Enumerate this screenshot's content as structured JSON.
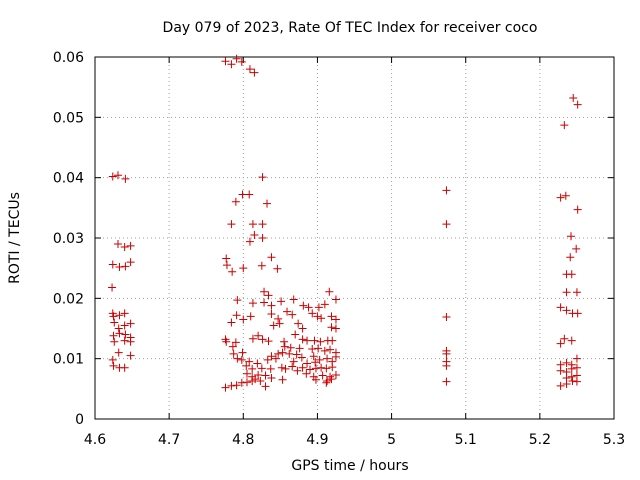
{
  "chart_data": {
    "type": "scatter",
    "title": "Day 079 of 2023, Rate Of TEC Index for receiver coco",
    "xlabel": "GPS time / hours",
    "ylabel": "ROTI / TECUs",
    "xlim": [
      4.6,
      5.3
    ],
    "ylim": [
      0,
      0.06
    ],
    "x_ticks": [
      "4.6",
      "4.7",
      "4.8",
      "4.9",
      "5",
      "5.1",
      "5.2",
      "5.3"
    ],
    "y_ticks": [
      "0",
      "0.01",
      "0.02",
      "0.03",
      "0.04",
      "0.05",
      "0.06"
    ],
    "grid": true,
    "marker": "+",
    "series_color": "#cc0000",
    "series": [
      {
        "points": [
          [
            4.624,
            0.0402
          ],
          [
            4.631,
            0.0404
          ],
          [
            4.641,
            0.0398
          ],
          [
            4.631,
            0.029
          ],
          [
            4.64,
            0.0285
          ],
          [
            4.648,
            0.0287
          ],
          [
            4.624,
            0.0256
          ],
          [
            4.633,
            0.0252
          ],
          [
            4.641,
            0.0253
          ],
          [
            4.648,
            0.026
          ],
          [
            4.623,
            0.0218
          ],
          [
            4.624,
            0.0175
          ],
          [
            4.625,
            0.017
          ],
          [
            4.633,
            0.0172
          ],
          [
            4.64,
            0.0175
          ],
          [
            4.626,
            0.016
          ],
          [
            4.632,
            0.015
          ],
          [
            4.64,
            0.0155
          ],
          [
            4.648,
            0.0158
          ],
          [
            4.625,
            0.0138
          ],
          [
            4.633,
            0.0142
          ],
          [
            4.641,
            0.014
          ],
          [
            4.648,
            0.0135
          ],
          [
            4.626,
            0.0128
          ],
          [
            4.64,
            0.013
          ],
          [
            4.648,
            0.0128
          ],
          [
            4.632,
            0.011
          ],
          [
            4.648,
            0.0105
          ],
          [
            4.624,
            0.0098
          ],
          [
            4.625,
            0.0088
          ],
          [
            4.633,
            0.0085
          ],
          [
            4.64,
            0.0085
          ],
          [
            4.776,
            0.0593
          ],
          [
            4.784,
            0.0588
          ],
          [
            4.791,
            0.0597
          ],
          [
            4.798,
            0.0592
          ],
          [
            4.809,
            0.058
          ],
          [
            4.815,
            0.0574
          ],
          [
            4.826,
            0.0401
          ],
          [
            4.799,
            0.0372
          ],
          [
            4.808,
            0.0372
          ],
          [
            4.79,
            0.036
          ],
          [
            4.832,
            0.0357
          ],
          [
            4.784,
            0.0323
          ],
          [
            4.813,
            0.0323
          ],
          [
            4.826,
            0.0323
          ],
          [
            4.815,
            0.0305
          ],
          [
            4.809,
            0.0294
          ],
          [
            4.826,
            0.03
          ],
          [
            4.838,
            0.0268
          ],
          [
            4.777,
            0.0266
          ],
          [
            4.778,
            0.0255
          ],
          [
            4.785,
            0.0244
          ],
          [
            4.8,
            0.025
          ],
          [
            4.825,
            0.0254
          ],
          [
            4.846,
            0.0249
          ],
          [
            4.828,
            0.0211
          ],
          [
            4.834,
            0.0205
          ],
          [
            4.792,
            0.0197
          ],
          [
            4.813,
            0.0192
          ],
          [
            4.828,
            0.0193
          ],
          [
            4.838,
            0.0188
          ],
          [
            4.851,
            0.0195
          ],
          [
            4.868,
            0.0198
          ],
          [
            4.881,
            0.0188
          ],
          [
            4.888,
            0.0185
          ],
          [
            4.902,
            0.0185
          ],
          [
            4.91,
            0.019
          ],
          [
            4.916,
            0.0211
          ],
          [
            4.925,
            0.0198
          ],
          [
            4.791,
            0.0172
          ],
          [
            4.8,
            0.0165
          ],
          [
            4.81,
            0.017
          ],
          [
            4.838,
            0.0174
          ],
          [
            4.847,
            0.0166
          ],
          [
            4.859,
            0.0178
          ],
          [
            4.866,
            0.0173
          ],
          [
            4.893,
            0.0175
          ],
          [
            4.9,
            0.017
          ],
          [
            4.905,
            0.0167
          ],
          [
            4.919,
            0.017
          ],
          [
            4.925,
            0.0165
          ],
          [
            4.784,
            0.016
          ],
          [
            4.841,
            0.0155
          ],
          [
            4.849,
            0.0158
          ],
          [
            4.874,
            0.0158
          ],
          [
            4.88,
            0.015
          ],
          [
            4.919,
            0.0152
          ],
          [
            4.925,
            0.015
          ],
          [
            4.776,
            0.0132
          ],
          [
            4.777,
            0.0128
          ],
          [
            4.79,
            0.0127
          ],
          [
            4.813,
            0.0133
          ],
          [
            4.82,
            0.0138
          ],
          [
            4.826,
            0.0132
          ],
          [
            4.834,
            0.0129
          ],
          [
            4.855,
            0.0128
          ],
          [
            4.87,
            0.014
          ],
          [
            4.88,
            0.0132
          ],
          [
            4.886,
            0.013
          ],
          [
            4.896,
            0.013
          ],
          [
            4.904,
            0.0128
          ],
          [
            4.914,
            0.013
          ],
          [
            4.92,
            0.013
          ],
          [
            4.786,
            0.012
          ],
          [
            4.856,
            0.012
          ],
          [
            4.864,
            0.0118
          ],
          [
            4.876,
            0.0117
          ],
          [
            4.893,
            0.0116
          ],
          [
            4.901,
            0.0117
          ],
          [
            4.91,
            0.0113
          ],
          [
            4.917,
            0.0115
          ],
          [
            4.925,
            0.011
          ],
          [
            4.787,
            0.0108
          ],
          [
            4.799,
            0.011
          ],
          [
            4.838,
            0.0104
          ],
          [
            4.847,
            0.0108
          ],
          [
            4.853,
            0.011
          ],
          [
            4.862,
            0.0108
          ],
          [
            4.872,
            0.0107
          ],
          [
            4.879,
            0.0102
          ],
          [
            4.895,
            0.0104
          ],
          [
            4.903,
            0.0098
          ],
          [
            4.913,
            0.01
          ],
          [
            4.925,
            0.0103
          ],
          [
            4.792,
            0.01
          ],
          [
            4.798,
            0.0098
          ],
          [
            4.808,
            0.0095
          ],
          [
            4.819,
            0.0092
          ],
          [
            4.833,
            0.0098
          ],
          [
            4.844,
            0.01
          ],
          [
            4.868,
            0.0095
          ],
          [
            4.886,
            0.0092
          ],
          [
            4.897,
            0.0094
          ],
          [
            4.92,
            0.0095
          ],
          [
            4.804,
            0.0088
          ],
          [
            4.812,
            0.0083
          ],
          [
            4.825,
            0.0084
          ],
          [
            4.837,
            0.0083
          ],
          [
            4.852,
            0.0085
          ],
          [
            4.857,
            0.0083
          ],
          [
            4.866,
            0.0087
          ],
          [
            4.88,
            0.0085
          ],
          [
            4.89,
            0.0082
          ],
          [
            4.898,
            0.0084
          ],
          [
            4.905,
            0.0085
          ],
          [
            4.912,
            0.0084
          ],
          [
            4.92,
            0.0086
          ],
          [
            4.805,
            0.0075
          ],
          [
            4.812,
            0.007
          ],
          [
            4.82,
            0.0073
          ],
          [
            4.83,
            0.0072
          ],
          [
            4.873,
            0.008
          ],
          [
            4.885,
            0.0075
          ],
          [
            4.895,
            0.007
          ],
          [
            4.907,
            0.0072
          ],
          [
            4.917,
            0.007
          ],
          [
            4.925,
            0.0073
          ],
          [
            4.816,
            0.0066
          ],
          [
            4.823,
            0.0063
          ],
          [
            4.838,
            0.0068
          ],
          [
            4.853,
            0.0065
          ],
          [
            4.898,
            0.0065
          ],
          [
            4.913,
            0.0063
          ],
          [
            4.919,
            0.0066
          ],
          [
            4.776,
            0.0052
          ],
          [
            4.784,
            0.0055
          ],
          [
            4.791,
            0.0056
          ],
          [
            4.798,
            0.006
          ],
          [
            4.805,
            0.0061
          ],
          [
            4.812,
            0.0063
          ],
          [
            4.83,
            0.0054
          ],
          [
            4.912,
            0.006
          ],
          [
            5.074,
            0.0379
          ],
          [
            5.074,
            0.0323
          ],
          [
            5.074,
            0.0169
          ],
          [
            5.074,
            0.0113
          ],
          [
            5.074,
            0.0108
          ],
          [
            5.074,
            0.0095
          ],
          [
            5.074,
            0.0088
          ],
          [
            5.074,
            0.0062
          ],
          [
            5.245,
            0.0532
          ],
          [
            5.251,
            0.0521
          ],
          [
            5.233,
            0.0487
          ],
          [
            5.228,
            0.0367
          ],
          [
            5.235,
            0.037
          ],
          [
            5.251,
            0.0347
          ],
          [
            5.242,
            0.0303
          ],
          [
            5.249,
            0.0282
          ],
          [
            5.241,
            0.0268
          ],
          [
            5.236,
            0.024
          ],
          [
            5.243,
            0.024
          ],
          [
            5.236,
            0.021
          ],
          [
            5.25,
            0.021
          ],
          [
            5.228,
            0.0185
          ],
          [
            5.236,
            0.018
          ],
          [
            5.244,
            0.0175
          ],
          [
            5.251,
            0.0175
          ],
          [
            5.233,
            0.0133
          ],
          [
            5.243,
            0.013
          ],
          [
            5.228,
            0.0125
          ],
          [
            5.25,
            0.01
          ],
          [
            5.228,
            0.009
          ],
          [
            5.236,
            0.0093
          ],
          [
            5.243,
            0.009
          ],
          [
            5.228,
            0.008
          ],
          [
            5.236,
            0.0078
          ],
          [
            5.243,
            0.0083
          ],
          [
            5.25,
            0.0085
          ],
          [
            5.243,
            0.007
          ],
          [
            5.25,
            0.0072
          ],
          [
            5.236,
            0.0068
          ],
          [
            5.244,
            0.0063
          ],
          [
            5.25,
            0.0062
          ],
          [
            5.228,
            0.0055
          ],
          [
            5.236,
            0.0058
          ]
        ]
      }
    ]
  }
}
